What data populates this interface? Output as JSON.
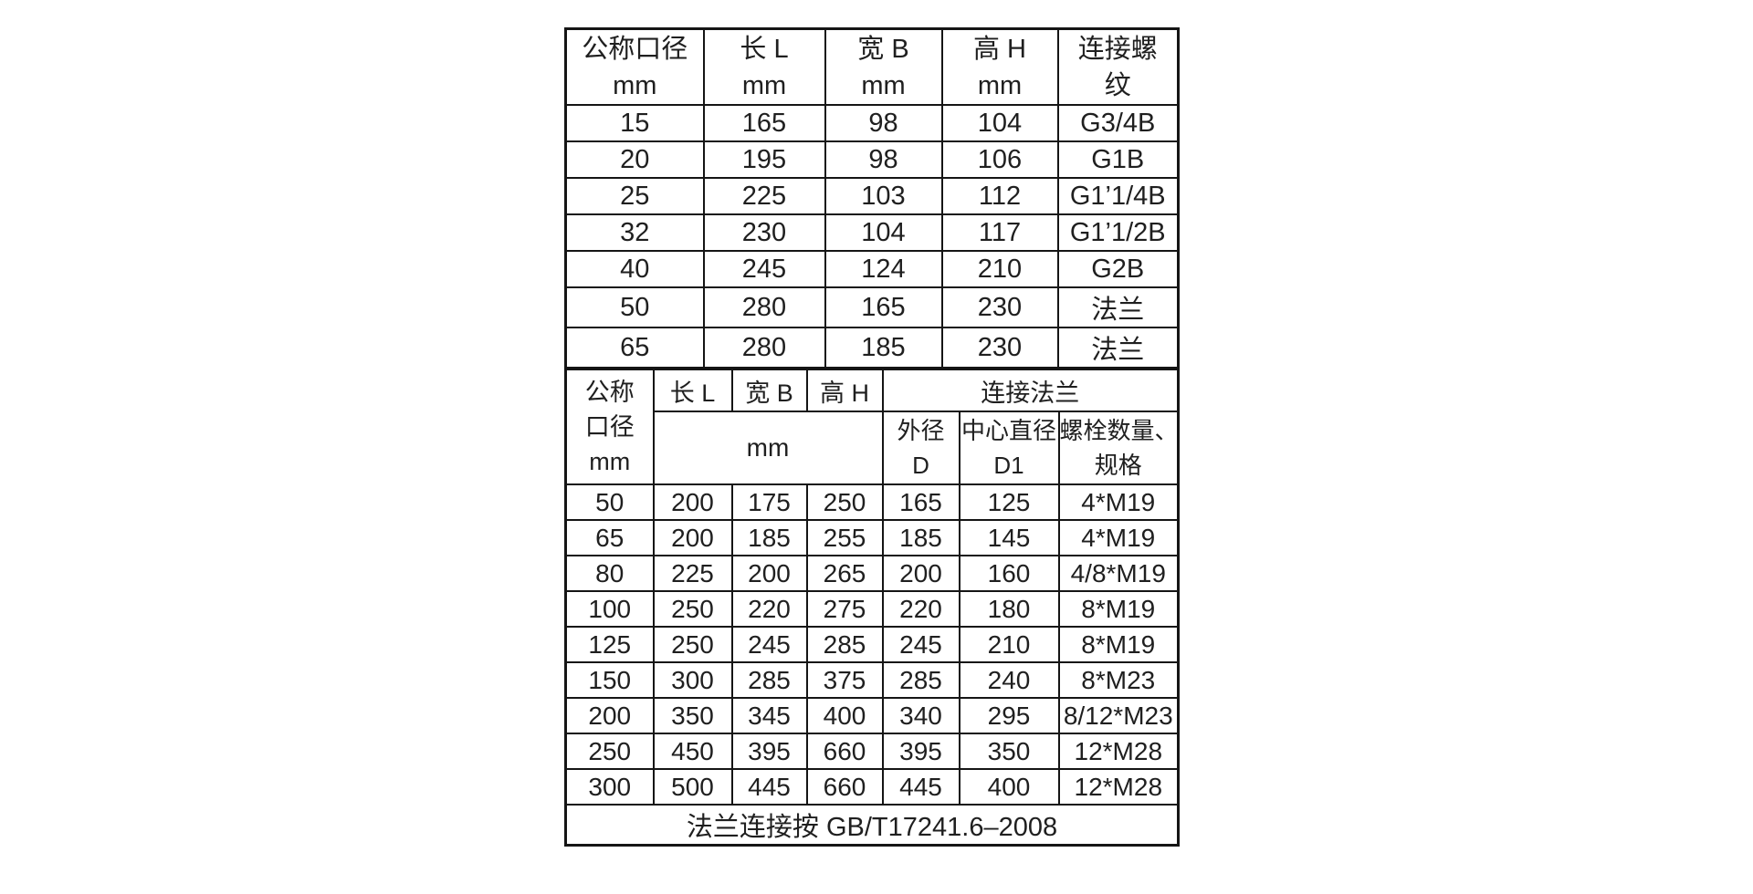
{
  "style": {
    "background_color": "#ffffff",
    "text_color": "#1f1f1f",
    "border_color": "#151515"
  },
  "table1": {
    "headers": [
      {
        "line1": "公称口径",
        "line2": "mm"
      },
      {
        "line1": "长 L",
        "line2": "mm"
      },
      {
        "line1": "宽 B",
        "line2": "mm"
      },
      {
        "line1": "高 H",
        "line2": "mm"
      },
      {
        "line1": "连接螺",
        "line2": "纹"
      }
    ],
    "rows": [
      [
        "15",
        "165",
        "98",
        "104",
        "G3/4B"
      ],
      [
        "20",
        "195",
        "98",
        "106",
        "G1B"
      ],
      [
        "25",
        "225",
        "103",
        "112",
        "G1’1/4B"
      ],
      [
        "32",
        "230",
        "104",
        "117",
        "G1’1/2B"
      ],
      [
        "40",
        "245",
        "124",
        "210",
        "G2B"
      ],
      [
        "50",
        "280",
        "165",
        "230",
        "法兰"
      ],
      [
        "65",
        "280",
        "185",
        "230",
        "法兰"
      ]
    ]
  },
  "table2": {
    "header": {
      "dn_lines": [
        "公称",
        "口径",
        "mm"
      ],
      "len_label": "长 L",
      "width_label": "宽 B",
      "height_label": "高 H",
      "flange_group_label": "连接法兰",
      "unit_label": "mm",
      "outer_lines": [
        "外径",
        "D"
      ],
      "center_lines": [
        "中心直径",
        "D1"
      ],
      "bolt_lines": [
        "螺栓数量、",
        "规格"
      ]
    },
    "rows": [
      [
        "50",
        "200",
        "175",
        "250",
        "165",
        "125",
        "4*M19"
      ],
      [
        "65",
        "200",
        "185",
        "255",
        "185",
        "145",
        "4*M19"
      ],
      [
        "80",
        "225",
        "200",
        "265",
        "200",
        "160",
        "4/8*M19"
      ],
      [
        "100",
        "250",
        "220",
        "275",
        "220",
        "180",
        "8*M19"
      ],
      [
        "125",
        "250",
        "245",
        "285",
        "245",
        "210",
        "8*M19"
      ],
      [
        "150",
        "300",
        "285",
        "375",
        "285",
        "240",
        "8*M23"
      ],
      [
        "200",
        "350",
        "345",
        "400",
        "340",
        "295",
        "8/12*M23"
      ],
      [
        "250",
        "450",
        "395",
        "660",
        "395",
        "350",
        "12*M28"
      ],
      [
        "300",
        "500",
        "445",
        "660",
        "445",
        "400",
        "12*M28"
      ]
    ],
    "footer_note": "法兰连接按 GB/T17241.6–2008"
  }
}
